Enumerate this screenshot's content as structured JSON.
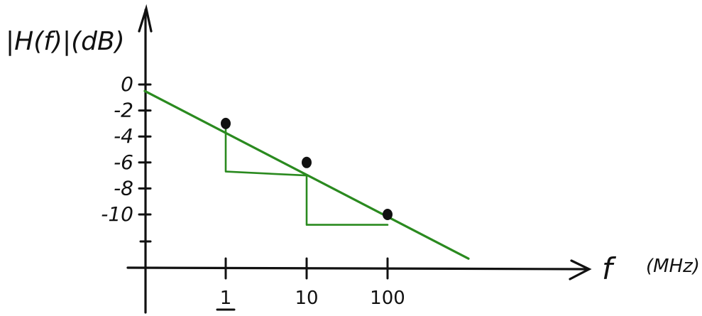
{
  "chart_data": {
    "type": "line",
    "ylabel": "|H(f)|(dB)",
    "xlabel": "f",
    "xunit": "(MHz)",
    "x_scale": "log",
    "yticks": [
      {
        "value": 0,
        "label": "0"
      },
      {
        "value": -2,
        "label": "-2"
      },
      {
        "value": -4,
        "label": "-4"
      },
      {
        "value": -6,
        "label": "-6"
      },
      {
        "value": -8,
        "label": "-8"
      },
      {
        "value": -10,
        "label": "-10"
      }
    ],
    "xticks": [
      {
        "value": 1,
        "label": "1"
      },
      {
        "value": 10,
        "label": "10"
      },
      {
        "value": 100,
        "label": "100"
      }
    ],
    "points": [
      {
        "x": 1,
        "y": -3
      },
      {
        "x": 10,
        "y": -6
      },
      {
        "x": 100,
        "y": -10
      }
    ],
    "fit_line": {
      "x": [
        0.1,
        1000
      ],
      "y": [
        -0.5,
        -13.4
      ]
    },
    "step_lines": [
      {
        "x": [
          1,
          1,
          10
        ],
        "y": [
          -3.3,
          -6.7,
          -7
        ]
      },
      {
        "x": [
          10,
          10,
          100
        ],
        "y": [
          -7,
          -10.8,
          -10.8
        ]
      }
    ],
    "colors": {
      "fit": "#2a8a1f",
      "axes": "#111111",
      "points": "#111111"
    }
  }
}
